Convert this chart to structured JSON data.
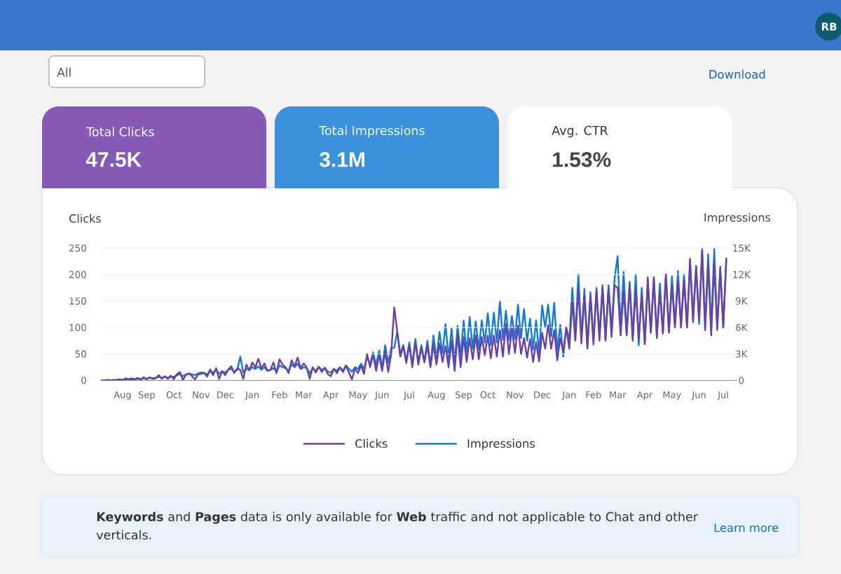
{
  "chart_data": {
    "type": "line",
    "ylabel": "Clicks",
    "y2label": "Impressions",
    "categories": [
      null,
      null,
      null,
      null,
      null,
      null,
      null,
      "Aug",
      null,
      null,
      null,
      null,
      null,
      null,
      null,
      "Sep",
      null,
      null,
      null,
      null,
      null,
      null,
      null,
      null,
      "Oct",
      null,
      null,
      null,
      null,
      null,
      null,
      null,
      null,
      "Nov",
      null,
      null,
      null,
      null,
      null,
      null,
      null,
      "Dec",
      null,
      null,
      null,
      null,
      null,
      null,
      null,
      null,
      "Jan",
      null,
      null,
      null,
      null,
      null,
      null,
      null,
      null,
      "Feb",
      null,
      null,
      null,
      null,
      null,
      null,
      null,
      "Mar",
      null,
      null,
      null,
      null,
      null,
      null,
      null,
      null,
      "Apr",
      null,
      null,
      null,
      null,
      null,
      null,
      null,
      null,
      "May",
      null,
      null,
      null,
      null,
      null,
      null,
      null,
      "Jun",
      null,
      null,
      null,
      null,
      null,
      null,
      null,
      null,
      "Jul",
      null,
      null,
      null,
      null,
      null,
      null,
      null,
      null,
      "Aug",
      null,
      null,
      null,
      null,
      null,
      null,
      null,
      null,
      "Sep",
      null,
      null,
      null,
      null,
      null,
      null,
      null,
      "Oct",
      null,
      null,
      null,
      null,
      null,
      null,
      null,
      null,
      "Nov",
      null,
      null,
      null,
      null,
      null,
      null,
      null,
      null,
      "Dec",
      null,
      null,
      null,
      null,
      null,
      null,
      null,
      null,
      "Jan",
      null,
      null,
      null,
      null,
      null,
      null,
      null,
      "Feb",
      null,
      null,
      null,
      null,
      null,
      null,
      null,
      "Mar",
      null,
      null,
      null,
      null,
      null,
      null,
      null,
      null,
      "Apr",
      null,
      null,
      null,
      null,
      null,
      null,
      null,
      null,
      "May",
      null,
      null,
      null,
      null,
      null,
      null,
      null,
      null,
      "Jun",
      null,
      null,
      null,
      null,
      null,
      null,
      null,
      "Jul",
      null
    ],
    "ylim": [
      0,
      250
    ],
    "yticks": [
      0,
      50,
      100,
      150,
      200,
      250
    ],
    "y2lim": [
      0,
      15000
    ],
    "y2ticks": [
      0,
      {
        "value": 3000,
        "label": "3K"
      },
      {
        "value": 6000,
        "label": "6K"
      },
      {
        "value": 9000,
        "label": "9K"
      },
      {
        "value": 12000,
        "label": "12K"
      },
      {
        "value": 15000,
        "label": "15K"
      }
    ],
    "series": [
      {
        "name": "Clicks",
        "color": "#6b3fa8",
        "values": [
          0,
          0,
          1,
          0,
          1,
          1,
          2,
          1,
          4,
          2,
          4,
          2,
          5,
          2,
          6,
          2,
          6,
          3,
          4,
          10,
          3,
          8,
          3,
          9,
          2,
          12,
          16,
          1,
          10,
          13,
          8,
          2,
          11,
          12,
          15,
          7,
          21,
          10,
          23,
          3,
          18,
          10,
          20,
          27,
          14,
          23,
          20,
          3,
          30,
          19,
          34,
          25,
          41,
          23,
          32,
          18,
          20,
          34,
          14,
          40,
          30,
          25,
          14,
          38,
          27,
          43,
          23,
          32,
          25,
          3,
          25,
          15,
          26,
          16,
          24,
          12,
          8,
          22,
          14,
          24,
          16,
          28,
          15,
          2,
          22,
          14,
          28,
          12,
          50,
          25,
          48,
          18,
          48,
          18,
          55,
          16,
          50,
          138,
          92,
          45,
          65,
          33,
          67,
          25,
          72,
          30,
          62,
          34,
          66,
          25,
          68,
          30,
          70,
          35,
          65,
          25,
          75,
          18,
          88,
          25,
          82,
          35,
          80,
          40,
          85,
          40,
          82,
          48,
          85,
          42,
          85,
          45,
          95,
          45,
          107,
          50,
          98,
          52,
          104,
          50,
          80,
          43,
          78,
          35,
          72,
          36,
          90,
          60,
          105,
          60,
          95,
          38,
          80,
          55,
          100,
          60,
          150,
          75,
          175,
          70,
          160,
          60,
          160,
          68,
          170,
          75,
          175,
          75,
          175,
          82,
          180,
          175,
          85,
          170,
          85,
          180,
          75,
          170,
          80,
          160,
          70,
          195,
          90,
          195,
          80,
          170,
          90,
          200,
          90,
          180,
          100,
          190,
          100,
          190,
          100,
          230,
          110,
          215,
          115,
          245,
          95,
          220,
          85,
          220,
          95,
          215,
          100,
          231
        ]
      },
      {
        "name": "Impressions",
        "color": "#0f7ad8",
        "axis": "y2",
        "values": [
          null,
          null,
          null,
          null,
          null,
          null,
          80,
          60,
          150,
          100,
          150,
          120,
          200,
          150,
          250,
          200,
          300,
          250,
          300,
          400,
          300,
          400,
          300,
          450,
          400,
          600,
          700,
          500,
          700,
          800,
          700,
          600,
          800,
          900,
          800,
          700,
          1000,
          900,
          1200,
          800,
          1000,
          900,
          1200,
          1300,
          1000,
          1200,
          2700,
          900,
          1300,
          1200,
          1500,
          1300,
          1600,
          1200,
          1500,
          1100,
          1200,
          1400,
          1000,
          1700,
          1500,
          1400,
          1100,
          1800,
          1500,
          1900,
          1300,
          1500,
          1400,
          800,
          1400,
          1100,
          1500,
          1200,
          1400,
          1000,
          900,
          1300,
          1100,
          1500,
          1100,
          1700,
          1300,
          1000,
          1500,
          1300,
          1900,
          1300,
          2700,
          1800,
          3200,
          1700,
          3400,
          1500,
          4000,
          2000,
          3700,
          3700,
          5500,
          3000,
          4000,
          2300,
          4300,
          1800,
          4700,
          2100,
          4000,
          2200,
          4500,
          1700,
          5100,
          2400,
          5500,
          3000,
          6400,
          2500,
          5900,
          2000,
          6200,
          2800,
          6800,
          3200,
          7200,
          3600,
          6700,
          3500,
          6800,
          4300,
          7600,
          4000,
          7700,
          4300,
          9000,
          4600,
          7900,
          4600,
          7300,
          4700,
          8600,
          4800,
          8100,
          4500,
          7000,
          3500,
          6800,
          3000,
          8500,
          6000,
          8600,
          5000,
          8800,
          3400,
          6300,
          2700,
          6000,
          4500,
          10500,
          5000,
          12000,
          4800,
          10400,
          3800,
          10000,
          4500,
          10500,
          5000,
          10800,
          4700,
          10800,
          5800,
          11500,
          14100,
          5800,
          12300,
          5300,
          11200,
          4800,
          12000,
          4000,
          10500,
          4100,
          11000,
          5500,
          11500,
          5000,
          11000,
          5300,
          12000,
          5600,
          11800,
          6300,
          12400,
          6300,
          12000,
          6000,
          13500,
          7000,
          13000,
          6400,
          14900,
          6300,
          14300,
          6000,
          14900,
          6000,
          12500,
          6000,
          13600
        ]
      }
    ],
    "grid": "y",
    "legend": "bottom",
    "annotations": [
      "All",
      "Download",
      "Total Clicks",
      "47.5K",
      "Total Impressions",
      "3.1M",
      "Avg. CTR",
      "1.53%",
      "**Keywords** and **Pages** data is only available for **Web** traffic and not applicable to Chat and other verticals.",
      "Learn more",
      "RB"
    ]
  }
}
